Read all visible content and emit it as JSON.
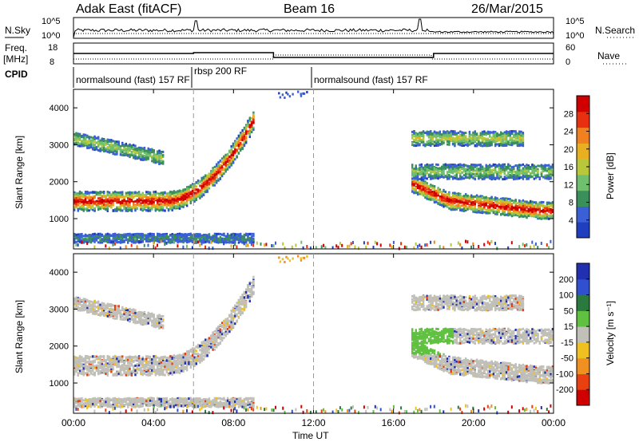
{
  "header": {
    "title": "Adak East (fitACF)",
    "beam": "Beam 16",
    "date": "26/Mar/2015"
  },
  "noise_panel": {
    "left_label": "N.Sky",
    "right_label": "N.Search",
    "left_ticks": [
      "10^5",
      "10^0"
    ],
    "right_ticks": [
      "10^5",
      "10^0"
    ]
  },
  "freq_panel": {
    "left_label_1": "Freq.",
    "left_label_2": "[MHz]",
    "right_label": "Nave",
    "left_ticks": [
      "18",
      "8"
    ],
    "right_ticks": [
      "60",
      "0"
    ]
  },
  "cpid": {
    "label": "CPID",
    "segments": [
      "normalsound (fast) 157 RF",
      "rbsp 200 RF",
      "normalsound (fast) 157 RF"
    ]
  },
  "power_panel": {
    "ylabel": "Slant Range [km]",
    "yticks": [
      "1000",
      "2000",
      "3000",
      "4000"
    ],
    "colorbar_label": "Power [dB]",
    "colorbar_ticks": [
      "4",
      "8",
      "12",
      "16",
      "20",
      "24",
      "28"
    ]
  },
  "velocity_panel": {
    "ylabel": "Slant Range [km]",
    "yticks": [
      "1000",
      "2000",
      "3000",
      "4000"
    ],
    "colorbar_label": "Velocity [m s⁻¹]",
    "colorbar_ticks": [
      "200",
      "100",
      "50",
      "15",
      "-15",
      "-50",
      "-100",
      "-200"
    ]
  },
  "xaxis": {
    "label": "Time UT",
    "ticks": [
      "00:00",
      "04:00",
      "08:00",
      "12:00",
      "16:00",
      "20:00",
      "00:00"
    ]
  },
  "chart_data": {
    "type": "heatmap",
    "x_range_hours": [
      0,
      24
    ],
    "y_range_km": [
      180,
      4500
    ],
    "cpid_switch_hours": [
      6.0,
      12.0
    ],
    "power_colors": [
      "#1f3fbf",
      "#3a5fd6",
      "#3a8f5a",
      "#6fbf6f",
      "#b8c83a",
      "#e8b020",
      "#f08020",
      "#e83010",
      "#d00000"
    ],
    "velocity_colors": [
      "#2030b0",
      "#3050d0",
      "#2a7a40",
      "#60c040",
      "#c0c0b8",
      "#f0c020",
      "#f09020",
      "#e84010",
      "#d00000"
    ],
    "frequency_mhz": [
      {
        "start": 0.0,
        "end": 6.0,
        "value": 13
      },
      {
        "start": 6.0,
        "end": 10.0,
        "value": 13.5
      },
      {
        "start": 10.0,
        "end": 18.0,
        "value": 10.5
      },
      {
        "start": 18.0,
        "end": 24.0,
        "value": 13
      }
    ]
  }
}
